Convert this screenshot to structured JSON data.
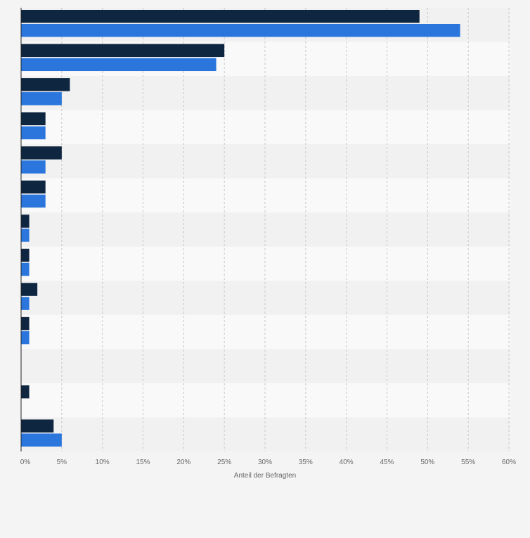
{
  "chart_data": {
    "type": "bar",
    "orientation": "horizontal",
    "title": "",
    "xlabel": "Anteil der Befragten",
    "ylabel": "",
    "xlim": [
      0,
      60
    ],
    "x_ticks": [
      0,
      5,
      10,
      15,
      20,
      25,
      30,
      35,
      40,
      45,
      50,
      55,
      60
    ],
    "x_tick_labels": [
      "0%",
      "5%",
      "10%",
      "15%",
      "20%",
      "25%",
      "30%",
      "35%",
      "40%",
      "45%",
      "50%",
      "55%",
      "60%"
    ],
    "category_count": 13,
    "categories": [
      "",
      "",
      "",
      "",
      "",
      "",
      "",
      "",
      "",
      "",
      "",
      "",
      ""
    ],
    "grid": true,
    "legend": "none",
    "series": [
      {
        "values": [
          49,
          25,
          6,
          3,
          5,
          3,
          1,
          1,
          2,
          1,
          0,
          1,
          4
        ],
        "color": "#0f2641"
      },
      {
        "values": [
          54,
          24,
          5,
          3,
          3,
          3,
          1,
          1,
          1,
          1,
          0,
          0,
          5
        ],
        "color": "#2a76dd"
      }
    ],
    "colors": {
      "band_light": "#f9f9f9",
      "band_dark": "#f1f1f1",
      "gridline": "#c8c8c8",
      "axis": "#222222",
      "tick_label": "#666666"
    }
  }
}
